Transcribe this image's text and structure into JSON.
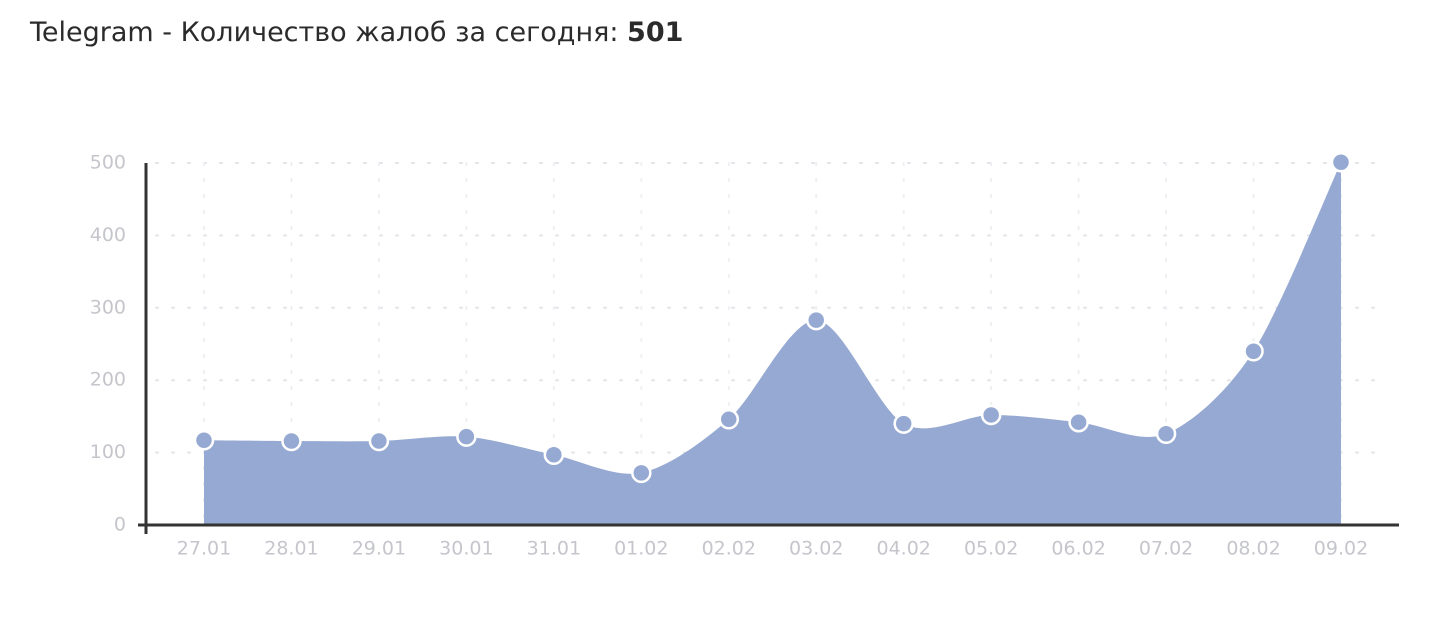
{
  "chart_data": {
    "type": "area",
    "title": "Telegram - Количество жалоб за сегодня:",
    "title_value": "501",
    "categories": [
      "27.01",
      "28.01",
      "29.01",
      "30.01",
      "31.01",
      "01.02",
      "02.02",
      "03.02",
      "04.02",
      "05.02",
      "06.02",
      "07.02",
      "08.02",
      "09.02"
    ],
    "values": [
      117,
      116,
      116,
      122,
      97,
      72,
      146,
      283,
      140,
      152,
      142,
      126,
      240,
      501
    ],
    "color": "#96a9d2",
    "ylim": [
      0,
      500
    ],
    "yticks": [
      0,
      100,
      200,
      300,
      400,
      500
    ],
    "grid": true
  }
}
